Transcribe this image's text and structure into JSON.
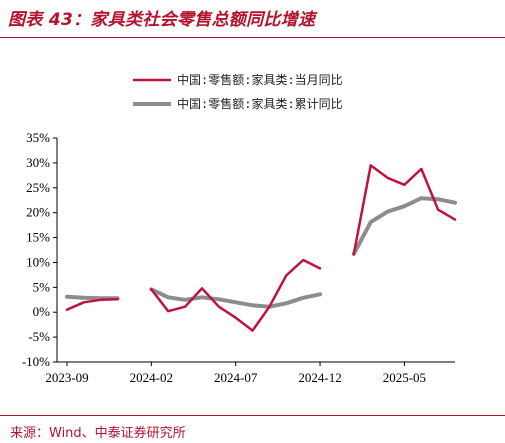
{
  "figure": {
    "title": "图表 43：家具类社会零售总额同比增速",
    "source": "来源：Wind、中泰证券研究所"
  },
  "colors": {
    "accent": "#b5122e",
    "series_monthly": "#c0143c",
    "series_cumulative": "#8c8c8c"
  },
  "chart_data": {
    "type": "line",
    "x": [
      "2023-09",
      "2023-10",
      "2023-11",
      "2023-12",
      "2024-01",
      "2024-02",
      "2024-03",
      "2024-04",
      "2024-05",
      "2024-06",
      "2024-07",
      "2024-08",
      "2024-09",
      "2024-10",
      "2024-11",
      "2024-12",
      "2025-01",
      "2025-02",
      "2025-03",
      "2025-04",
      "2025-05",
      "2025-06",
      "2025-07",
      "2025-08"
    ],
    "x_tick_labels": [
      "2023-09",
      "2024-02",
      "2024-07",
      "2024-12",
      "2025-05"
    ],
    "y_tick_labels": [
      "35%",
      "30%",
      "25%",
      "20%",
      "15%",
      "10%",
      "5%",
      "0%",
      "-5%",
      "-10%"
    ],
    "ylim": [
      -10,
      35
    ],
    "y_unit": "%",
    "grid": false,
    "legend_position": "top-center",
    "series": [
      {
        "name": "中国:零售额:家具类:当月同比",
        "color": "#c0143c",
        "values": [
          0.5,
          2.0,
          2.5,
          2.6,
          null,
          4.6,
          0.2,
          1.1,
          4.8,
          1.1,
          -1.1,
          -3.7,
          1.1,
          7.4,
          10.5,
          8.8,
          null,
          11.7,
          29.5,
          27.0,
          25.6,
          28.8,
          20.6,
          18.6
        ]
      },
      {
        "name": "中国:零售额:家具类:累计同比",
        "color": "#8c8c8c",
        "values": [
          3.1,
          2.9,
          2.8,
          2.8,
          null,
          4.6,
          3.0,
          2.5,
          3.0,
          2.6,
          2.0,
          1.4,
          1.1,
          1.8,
          2.9,
          3.6,
          null,
          11.7,
          18.1,
          20.2,
          21.3,
          22.9,
          22.7,
          22.0
        ]
      }
    ]
  }
}
